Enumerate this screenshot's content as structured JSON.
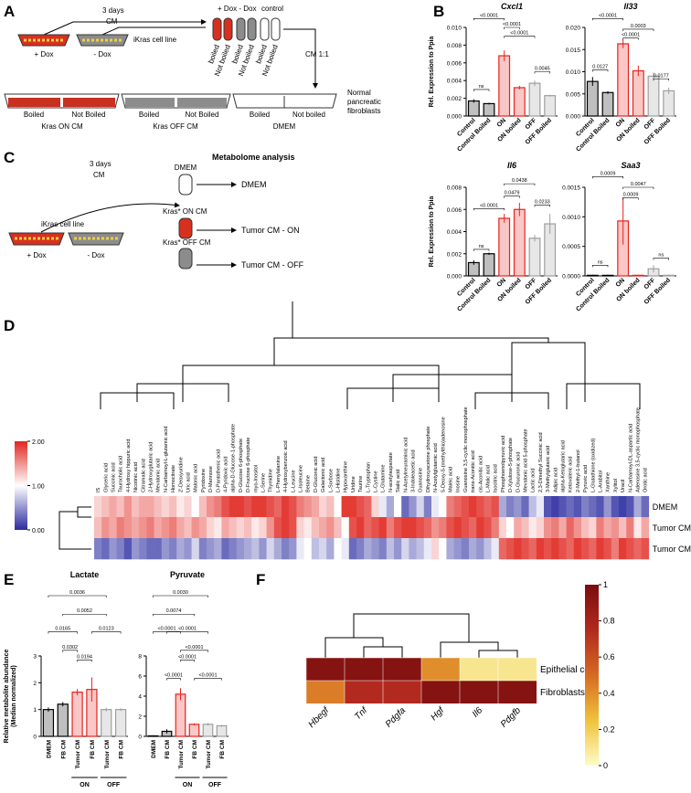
{
  "panel_a": {
    "label": "A",
    "time": "3 days",
    "cm": "CM",
    "tube_headers": [
      "+ Dox - Dox",
      "control"
    ],
    "tube_labels": [
      "boiled",
      "Not boiled",
      "boiled",
      "Not boiled",
      "boiled",
      "Not boiled"
    ],
    "dish_plus": "+ Dox",
    "dish_minus": "- Dox",
    "cell_line": "iKras cell line",
    "mix": "CM 1:1",
    "plates": [
      "Boiled",
      "Not Boiled",
      "Boiled",
      "Not Boiled",
      "Boiled",
      "Not boiled"
    ],
    "plate_groups": [
      "Kras ON CM",
      "Kras OFF CM",
      "DMEM"
    ],
    "fibroblasts": [
      "Normal",
      "pancreatic",
      "fibroblasts"
    ]
  },
  "panel_c": {
    "label": "C",
    "time": "3 days",
    "cm": "CM",
    "title": "Metabolome analysis",
    "tube_dmem": "DMEM",
    "out_dmem": "DMEM",
    "cell_line": "iKras cell line",
    "dish_plus": "+ Dox",
    "dish_minus": "- Dox",
    "on_cm": "Kras* ON CM",
    "out_on": "Tumor CM - ON",
    "off_cm": "Kras* OFF CM",
    "out_off": "Tumor CM - OFF"
  },
  "panel_labels": {
    "b": "B",
    "d": "D",
    "e": "E",
    "f": "F"
  },
  "chart_data": [
    {
      "type": "bar",
      "title": "Cxcl1",
      "ylabel": "Rel. Expression to Ppia",
      "categories": [
        "Control",
        "Control Boiled",
        "ON",
        "ON boiled",
        "OFF",
        "OFF Boiled"
      ],
      "colors": [
        "#000000",
        "#000000",
        "#e8221d",
        "#e8221d",
        "#9e9e9e",
        "#9e9e9e"
      ],
      "values": [
        0.0017,
        0.0014,
        0.0068,
        0.0032,
        0.0037,
        0.0023
      ],
      "errors": [
        0.0002,
        0.0001,
        0.0006,
        0.0002,
        0.0003,
        0.0001
      ],
      "ylim": [
        0,
        0.01
      ],
      "yticks": [
        {
          "value": 0,
          "label": "0.000"
        },
        0.002,
        0.004,
        0.006,
        0.008,
        {
          "value": 0.01,
          "label": "0.010"
        }
      ],
      "annotations": [
        "ns",
        "<0.0001",
        "<0.0001",
        "<0.0001",
        "0.0045"
      ]
    },
    {
      "type": "bar",
      "title": "Il33",
      "categories": [
        "Control",
        "Control Boiled",
        "ON",
        "ON boiled",
        "OFF",
        "OFF Boiled"
      ],
      "colors": [
        "#000000",
        "#000000",
        "#e8221d",
        "#e8221d",
        "#9e9e9e",
        "#9e9e9e"
      ],
      "values": [
        0.0078,
        0.0053,
        0.0163,
        0.0102,
        0.009,
        0.0057
      ],
      "errors": [
        0.001,
        0.0003,
        0.001,
        0.0012,
        0.0008,
        0.0007
      ],
      "ylim": [
        0,
        0.02
      ],
      "yticks": [
        {
          "value": 0,
          "label": "0.000"
        },
        0.005,
        {
          "value": 0.01,
          "label": "0.010"
        },
        0.015,
        {
          "value": 0.02,
          "label": "0.020"
        }
      ],
      "annotations": [
        "<0.0001",
        "0.0127",
        "0.0003",
        "<0.0001",
        "0.0177"
      ]
    },
    {
      "type": "bar",
      "title": "Il6",
      "ylabel": "Rel. Expression to Ppia",
      "categories": [
        "Control",
        "Control Boiled",
        "ON",
        "ON boiled",
        "OFF",
        "OFF Boiled"
      ],
      "colors": [
        "#000000",
        "#000000",
        "#e8221d",
        "#e8221d",
        "#9e9e9e",
        "#9e9e9e"
      ],
      "values": [
        0.0012,
        0.002,
        0.0052,
        0.006,
        0.0034,
        0.0047
      ],
      "errors": [
        0.0002,
        0.0001,
        0.0004,
        0.0006,
        0.0003,
        0.0009
      ],
      "ylim": [
        0,
        0.008
      ],
      "yticks": [
        {
          "value": 0,
          "label": "0.000"
        },
        0.002,
        0.004,
        0.006,
        0.008
      ],
      "annotations": [
        "ns",
        "<0.0001",
        "0.0479",
        "0.0438",
        "0.0233"
      ]
    },
    {
      "type": "bar",
      "title": "Saa3",
      "categories": [
        "Control",
        "Control Boiled",
        "ON",
        "ON boiled",
        "OFF",
        "OFF Boiled"
      ],
      "colors": [
        "#000000",
        "#000000",
        "#e8221d",
        "#e8221d",
        "#9e9e9e",
        "#9e9e9e"
      ],
      "values": [
        1e-05,
        1e-05,
        0.00093,
        1e-05,
        0.00012,
        1e-05
      ],
      "errors": [
        1e-05,
        1e-05,
        0.0004,
        1e-05,
        6e-05,
        1e-05
      ],
      "ylim": [
        0,
        0.0015
      ],
      "yticks": [
        {
          "value": 0,
          "label": "0.0000"
        },
        0.0005,
        {
          "value": 0.001,
          "label": "0.0010"
        },
        0.0015
      ],
      "annotations": [
        "ns",
        "0.0009",
        "0.0009",
        "0.0047",
        "ns"
      ]
    },
    {
      "type": "heatmap",
      "rows": [
        "DMEM",
        "Tumor CM OFF",
        "Tumor CM ON"
      ],
      "columns": [
        "IS",
        "Glyceric acid",
        "Succinic acid",
        "Taurocholic acid",
        "4-Hydroxy hippuric acid",
        "Nicotinic acid",
        "Citramalic acid",
        "2-Hydroxyglutaric acid",
        "Mevalonic acid",
        "N-Carbamoyl-L-glutamic acid",
        "Homocitrate",
        "2'-Deoxyuridine",
        "Uric acid",
        "Malonic acid",
        "Pyridoxine",
        "D-Mannose",
        "D-Pantothenic acid",
        "4-Pyridoxic acid",
        "alpha-D-Glucose-1-phosphate",
        "D-Glucose 6-phosphate",
        "D-Fructose 6-phosphate",
        "myo-Inositol",
        "L-Serine",
        "Thymidine",
        "L-Phenylalanine",
        "4-Hydroxybenzoic acid",
        "L-Leucine",
        "L-Isoleucine",
        "Betaine",
        "D-Gluconic acid",
        "Galactonic acid",
        "L-Sorbose",
        "L-Histidine",
        "Hypoxanthine",
        "Uridine",
        "Taurine",
        "L-Tryptophan",
        "L-Cystine",
        "L-Glutamine",
        "N-acetylaspartate",
        "Sialic acid",
        "N-Acetylneuraminic acid",
        "3-Indoleacetic acid",
        "Guanosine",
        "Dihydroxyacetone phosphate",
        "N-Acetylglutamic acid",
        "5-Deoxy-5-(methylthio)adenosine",
        "Maleic acid",
        "Inosine",
        "Guanosine 3,5-cyclic monophosphate",
        "trans-Aconitic acid",
        "cis-Aconitic acid",
        "L-Malic acid",
        "Isocitric acid",
        "Phosphoenolpyruvic acid",
        "D-Xylulose-5-phosphate",
        "D-Glucuronic acid",
        "Mevalonic acid 5-phosphate",
        "Lactic acid",
        "2,3-Dimethyl Succinic acid",
        "3-Methylglutaric acid",
        "Adipic acid",
        "alpha-Ketoglutaric acid",
        "Ketovaleric acid",
        "2-Methyl-1-butanol",
        "Pyruvic acid",
        "L-Glutathione (oxidized)",
        "L-Arabitol",
        "Xanthine",
        "Xylitol",
        "Uracil",
        "N-Carbamoyl-DL-aspartic acid",
        "Adenosine 3,5-cyclic monophosphate",
        "Orotic acid"
      ],
      "values": [
        [
          1.2,
          1.3,
          1.4,
          1.3,
          1.5,
          1.3,
          1.4,
          1.4,
          1.3,
          1.2,
          1.3,
          1.1,
          1.2,
          1.0,
          1.3,
          1.5,
          1.6,
          1.8,
          1.9,
          1.9,
          1.8,
          1.9,
          1.9,
          1.8,
          1.7,
          1.9,
          1.8,
          1.6,
          1.5,
          1.4,
          1.2,
          1.3,
          1.0,
          1.9,
          1.9,
          1.8,
          1.7,
          1.2,
          0.9,
          0.6,
          1.0,
          0.3,
          0.5,
          0.8,
          0.4,
          0.9,
          1.0,
          1.6,
          1.7,
          1.8,
          1.9,
          1.8,
          1.7,
          1.8,
          0.6,
          0.4,
          0.5,
          0.3,
          0.7,
          0.9,
          0.2,
          0.1,
          0.2,
          0.3,
          0.2,
          0.4,
          0.3,
          0.2,
          0.5,
          0.2,
          0.1,
          0.2,
          0.6,
          0.3
        ],
        [
          1.3,
          1.5,
          1.4,
          1.6,
          1.5,
          1.4,
          1.5,
          1.6,
          1.4,
          1.5,
          1.6,
          1.4,
          1.3,
          1.5,
          1.4,
          1.2,
          1.1,
          1.4,
          1.3,
          1.2,
          1.3,
          1.1,
          1.2,
          1.5,
          1.8,
          1.9,
          1.8,
          1.2,
          1.1,
          1.3,
          1.4,
          1.5,
          1.3,
          1.0,
          1.8,
          1.9,
          1.7,
          1.8,
          1.9,
          1.6,
          1.8,
          1.9,
          1.9,
          1.8,
          1.7,
          1.5,
          1.6,
          1.8,
          1.9,
          1.8,
          1.7,
          1.9,
          1.8,
          1.6,
          1.2,
          1.0,
          1.4,
          1.3,
          1.1,
          1.2,
          1.5,
          1.6,
          1.4,
          1.7,
          1.5,
          1.3,
          1.2,
          1.6,
          1.4,
          1.5,
          1.3,
          1.6,
          1.1,
          1.4
        ],
        [
          0.4,
          0.3,
          0.5,
          0.4,
          0.2,
          0.5,
          0.4,
          0.3,
          0.3,
          0.5,
          0.4,
          0.6,
          0.5,
          0.8,
          0.4,
          0.5,
          0.6,
          0.3,
          0.4,
          0.5,
          0.6,
          0.7,
          0.5,
          0.8,
          0.6,
          0.4,
          0.5,
          0.9,
          1.0,
          0.7,
          0.8,
          0.6,
          1.0,
          0.9,
          0.3,
          0.4,
          0.6,
          0.5,
          0.4,
          0.7,
          0.5,
          0.8,
          0.6,
          0.7,
          0.9,
          1.2,
          1.0,
          0.6,
          0.5,
          0.4,
          0.6,
          0.5,
          0.7,
          0.9,
          1.7,
          1.8,
          1.9,
          1.8,
          1.7,
          1.9,
          1.8,
          1.9,
          1.8,
          1.7,
          1.9,
          1.8,
          1.7,
          1.9,
          1.8,
          1.6,
          1.9,
          1.8,
          1.7,
          1.8
        ]
      ],
      "clim": [
        0,
        2
      ],
      "cticks": [
        {
          "value": 2,
          "label": "2.00"
        },
        {
          "value": 1,
          "label": "1.00"
        },
        {
          "value": 0,
          "label": "0.00"
        }
      ],
      "colors": [
        "#2b2ba0",
        "#ffffff",
        "#e0261f"
      ]
    },
    {
      "type": "bar",
      "title": "Lactate",
      "ylabel": [
        "Relative metabolite abundance",
        "(Median normalized)"
      ],
      "categories": [
        "DMEM",
        "FB CM",
        "Tumor CM",
        "FB CM",
        "Tumor CM",
        "FB CM"
      ],
      "groups": [
        "ON",
        "OFF"
      ],
      "colors": [
        "#000000",
        "#000000",
        "#e8221d",
        "#e8221d",
        "#9e9e9e",
        "#9e9e9e"
      ],
      "values": [
        1.0,
        1.2,
        1.65,
        1.75,
        1.0,
        1.0
      ],
      "errors": [
        0.08,
        0.08,
        0.12,
        0.45,
        0.07,
        0.05
      ],
      "ylim": [
        0,
        3
      ],
      "yticks": [
        0,
        1,
        2,
        3
      ],
      "annotations": [
        "0.0036",
        "0.0052",
        "0.0165",
        "0.0302",
        "0.0194",
        "0.0123"
      ]
    },
    {
      "type": "bar",
      "title": "Pyruvate",
      "categories": [
        "DMEM",
        "FB CM",
        "Tumor CM",
        "FB CM",
        "Tumor CM",
        "FB CM"
      ],
      "groups": [
        "ON",
        "OFF"
      ],
      "colors": [
        "#000000",
        "#000000",
        "#e8221d",
        "#e8221d",
        "#9e9e9e",
        "#9e9e9e"
      ],
      "values": [
        0.05,
        0.5,
        4.2,
        1.2,
        1.2,
        1.05
      ],
      "errors": [
        0.05,
        0.2,
        0.6,
        0.1,
        0.12,
        0.1
      ],
      "ylim": [
        0,
        8
      ],
      "yticks": [
        0,
        2,
        4,
        6,
        8
      ],
      "annotations": [
        "0.0030",
        "0.0074",
        "<0.0001",
        "<0.0001",
        "<0.0001",
        "<0.0001",
        "<0.0001",
        "<0.0001"
      ]
    },
    {
      "type": "heatmap",
      "rows": [
        "Epithelial cells",
        "Fibroblasts"
      ],
      "columns": [
        "Hbegf",
        "Tnf",
        "Pdgfa",
        "Hgf",
        "Il6",
        "Pdgfb"
      ],
      "values": [
        [
          0.95,
          0.95,
          0.95,
          0.4,
          0.1,
          0.1
        ],
        [
          0.45,
          0.75,
          0.75,
          0.95,
          0.95,
          0.95
        ]
      ],
      "clim": [
        0,
        1
      ],
      "cticks": [
        1,
        0.8,
        0.6,
        0.4,
        0.2,
        0
      ],
      "colors": [
        "#fefcc8",
        "#f0c23a",
        "#d66a22",
        "#b22a1f",
        "#7a0d0d"
      ]
    }
  ]
}
